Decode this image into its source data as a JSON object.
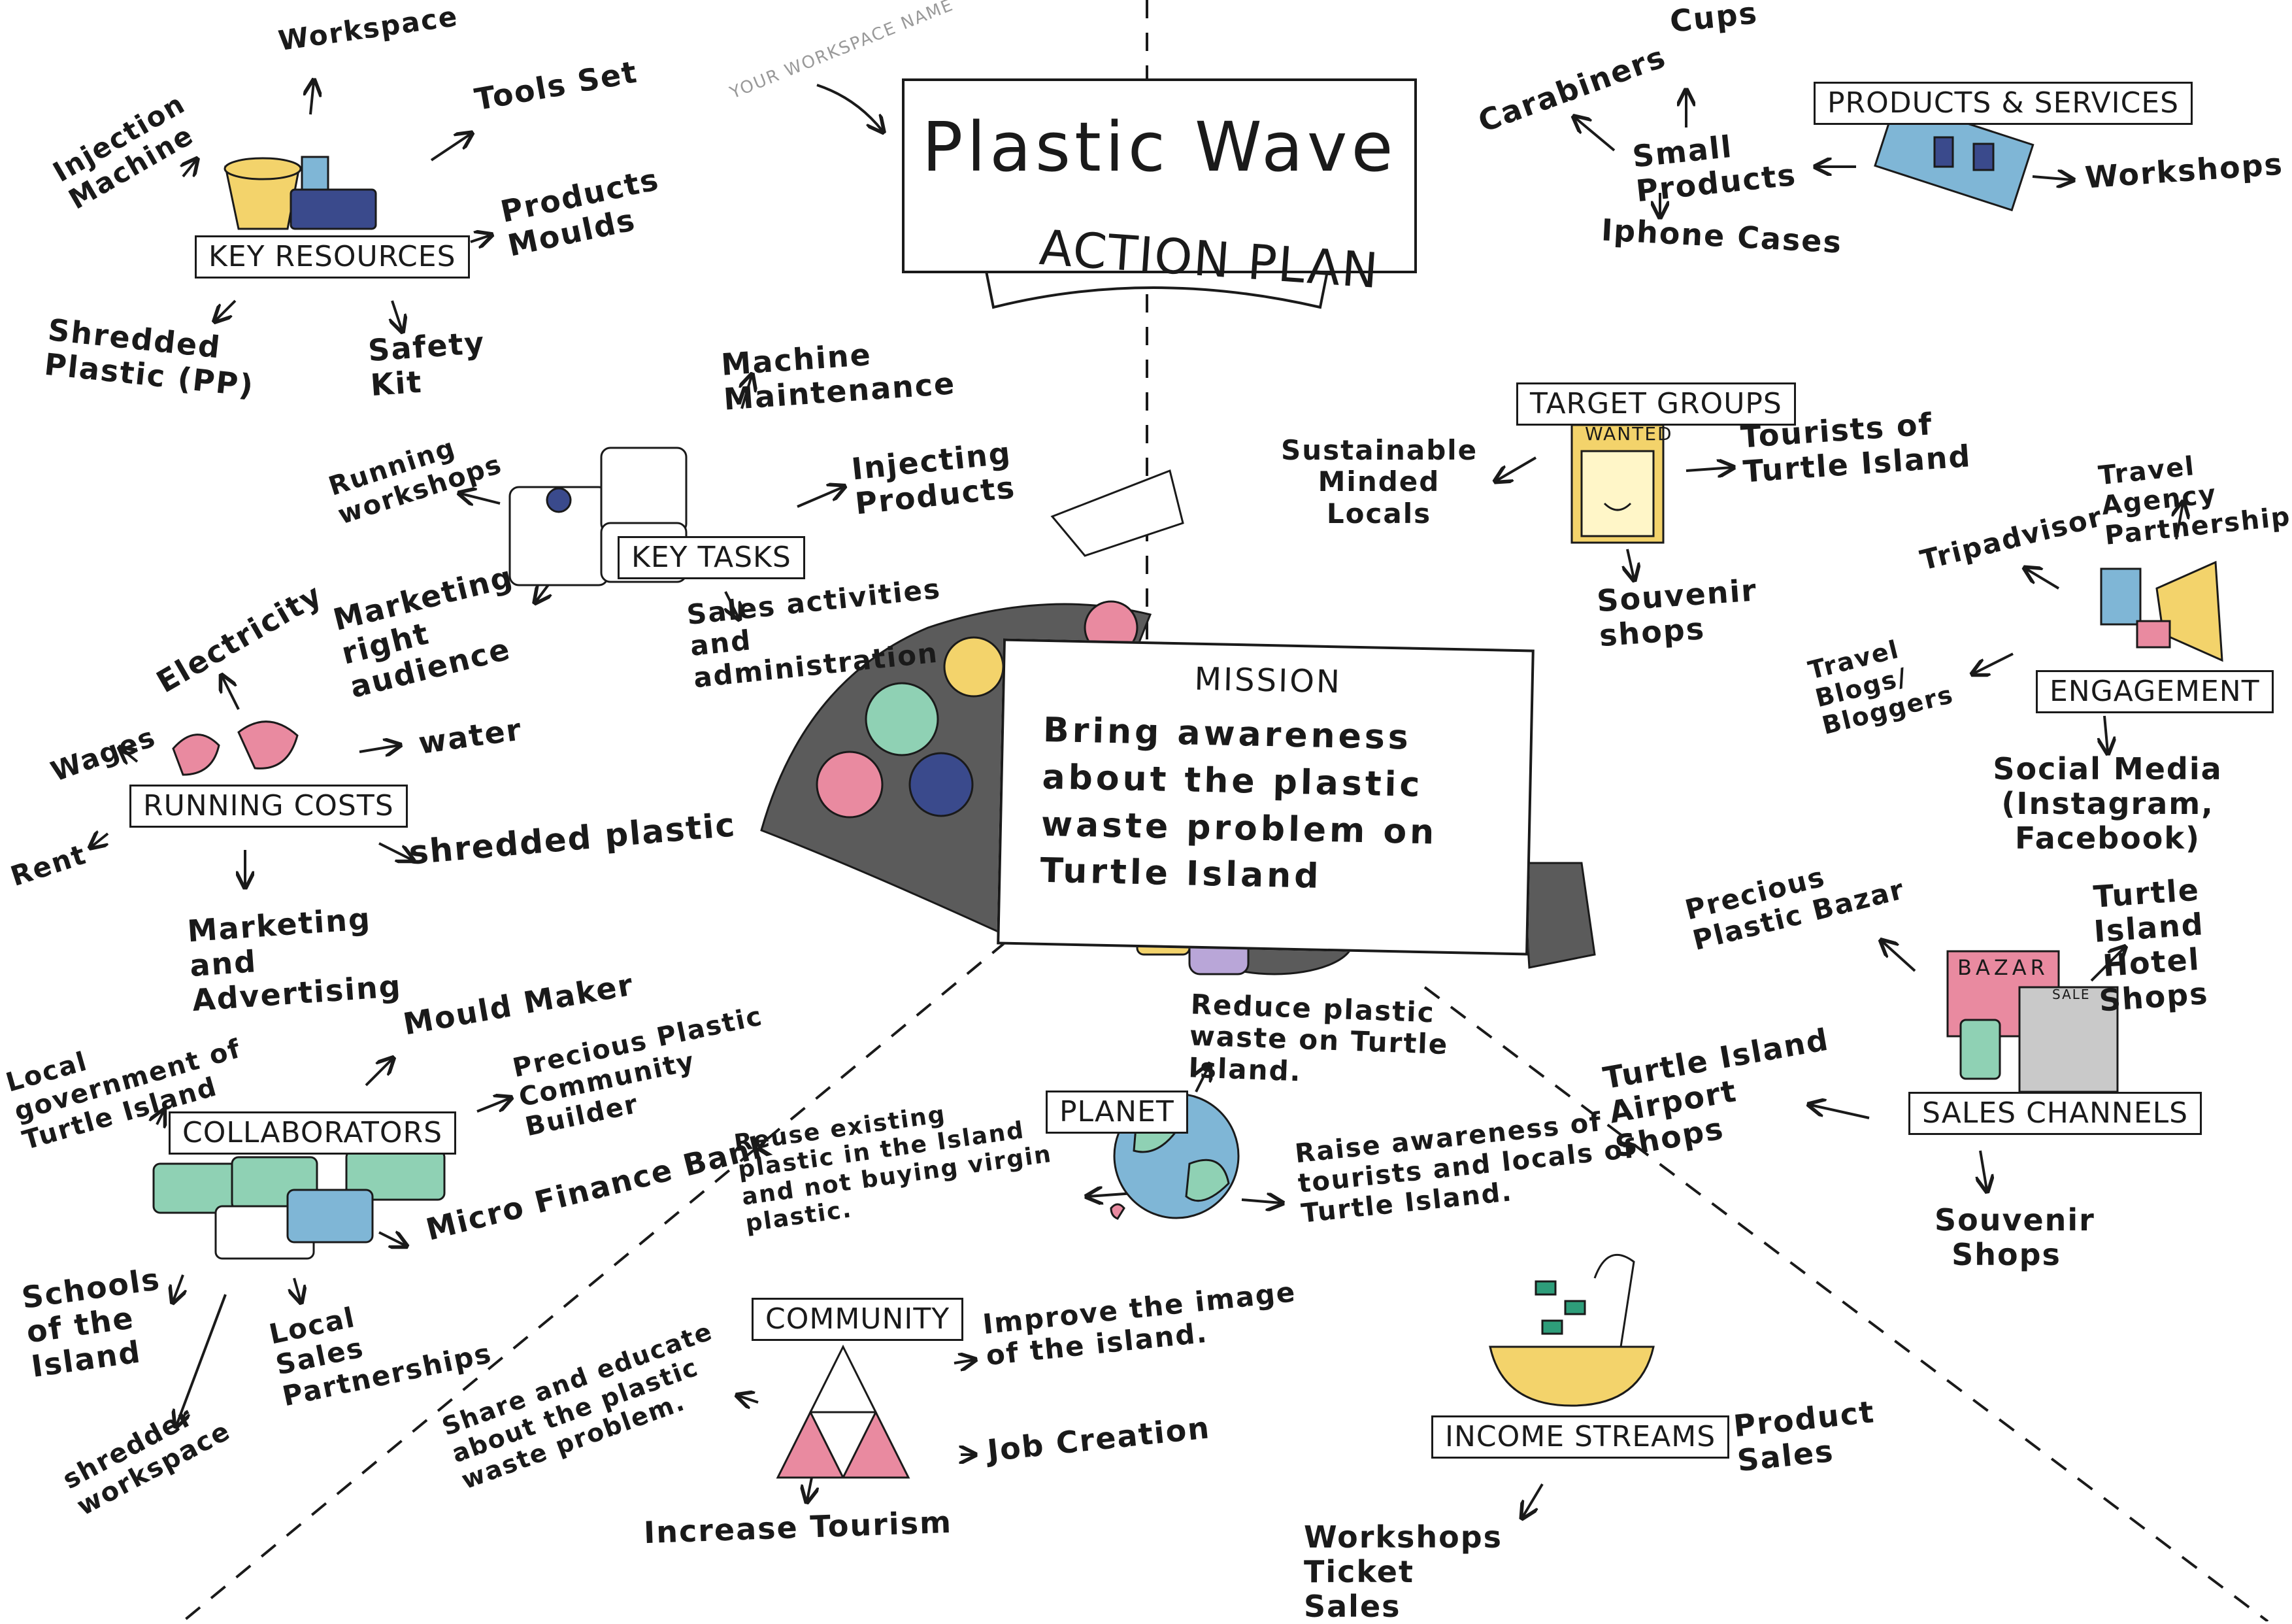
{
  "title": {
    "workspace_hint": "YOUR WORKSPACE NAME",
    "name": "Plastic Wave",
    "banner": "ACTION PLAN"
  },
  "mission": {
    "heading": "MISSION",
    "text": "Bring awareness about the plastic waste problem on Turtle Island"
  },
  "key_resources": {
    "label": "KEY RESOURCES",
    "items": [
      "Workspace",
      "Injection Machine",
      "Tools Set",
      "Products Moulds",
      "Shredded Plastic (PP)",
      "Safety Kit"
    ]
  },
  "key_tasks": {
    "label": "KEY TASKS",
    "items": [
      "Machine Maintenance",
      "Running workshops",
      "Injecting Products",
      "Marketing right audience",
      "Sales activities and administration"
    ]
  },
  "running_costs": {
    "label": "RUNNING COSTS",
    "items": [
      "Electricity",
      "Wages",
      "water",
      "Rent",
      "shredded plastic",
      "Marketing and Advertising"
    ]
  },
  "collaborators": {
    "label": "COLLABORATORS",
    "items": [
      "Local government of Turtle Island",
      "Mould Maker",
      "Precious Plastic Community Builder",
      "Micro Finance Bank",
      "Schools of the Island",
      "Local Sales Partnerships",
      "shredder workspace"
    ]
  },
  "products_services": {
    "label": "PRODUCTS & SERVICES",
    "items": [
      "Cups",
      "Carabiners",
      "Small Products",
      "Iphone Cases",
      "Workshops"
    ]
  },
  "target_groups": {
    "label": "TARGET GROUPS",
    "poster": "WANTED",
    "items": [
      "Sustainable Minded Locals",
      "Tourists of Turtle Island",
      "Souvenir shops"
    ]
  },
  "engagement": {
    "label": "ENGAGEMENT",
    "items": [
      "Travel Agency Partnership",
      "Tripadvisor",
      "Travel Blogs/ Bloggers",
      "Social Media (Instagram, Facebook)"
    ]
  },
  "sales_channels": {
    "label": "SALES CHANNELS",
    "shop_sign": "BAZAR",
    "register_sign": "SALE",
    "items": [
      "Precious Plastic Bazar",
      "Turtle Island Hotel Shops",
      "Turtle Island Airport Shops",
      "Souvenir Shops"
    ]
  },
  "planet": {
    "label": "PLANET",
    "items": [
      "Reduce plastic waste on Turtle Island.",
      "Reuse existing plastic in the Island and not buying virgin plastic.",
      "Raise awareness of tourists and locals of Turtle Island."
    ]
  },
  "community": {
    "label": "COMMUNITY",
    "items": [
      "Improve the image of the island.",
      "Share and educate about the plastic waste problem.",
      "Job Creation",
      "Increase Tourism"
    ]
  },
  "income_streams": {
    "label": "INCOME STREAMS",
    "items": [
      "Product Sales",
      "Workshops Ticket Sales"
    ]
  },
  "colors": {
    "ink": "#1a1a1a",
    "pink": "#e98aa0",
    "teal": "#8fd1b4",
    "yellow": "#f3d36b",
    "blue": "#7fb6d6",
    "navy": "#3a4a8c",
    "grey": "#5b5b5b"
  }
}
